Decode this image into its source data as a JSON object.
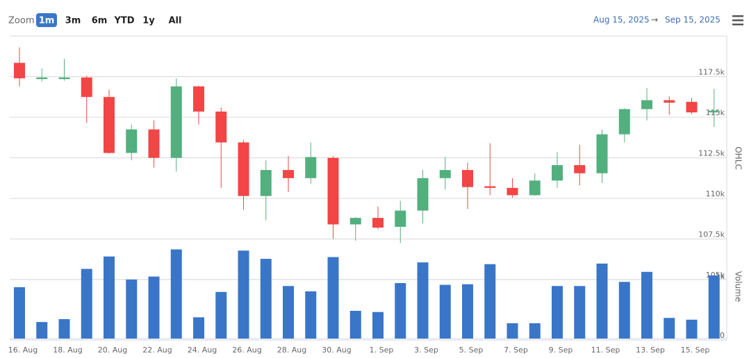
{
  "chart_data": {
    "type": "candlestick",
    "zoom_label": "Zoom",
    "zoom_buttons": [
      "1m",
      "3m",
      "6m",
      "YTD",
      "1y",
      "All"
    ],
    "selected_zoom": 0,
    "range_from": "Aug 15, 2025",
    "range_arrow": "→",
    "range_to": "Sep 15, 2025",
    "categories": [
      "16. Aug",
      null,
      "18. Aug",
      null,
      "20. Aug",
      null,
      "22. Aug",
      null,
      "24. Aug",
      null,
      "26. Aug",
      null,
      "28. Aug",
      null,
      "30. Aug",
      null,
      "1. Sep",
      null,
      "3. Sep",
      null,
      "5. Sep",
      null,
      "7. Sep",
      null,
      "9. Sep",
      null,
      "11. Sep",
      null,
      "13. Sep",
      null,
      "15. Sep",
      null
    ],
    "open": [
      118350,
      117350,
      117350,
      117450,
      116250,
      112800,
      114250,
      112500,
      116900,
      115350,
      113450,
      110150,
      111750,
      111250,
      112500,
      108400,
      108800,
      108250,
      109250,
      111250,
      111750,
      110750,
      110650,
      110200,
      111100,
      112050,
      111550,
      113950,
      115500,
      116050,
      115950,
      115300
    ],
    "high": [
      119300,
      118000,
      118600,
      117550,
      116700,
      114550,
      114800,
      117400,
      116950,
      115600,
      113600,
      112350,
      112600,
      113450,
      112600,
      108850,
      109500,
      109850,
      111750,
      112550,
      112200,
      113400,
      111250,
      111550,
      112850,
      113300,
      114250,
      115550,
      116800,
      116300,
      116200,
      116750
    ],
    "low": [
      116900,
      117200,
      117250,
      114650,
      112750,
      112350,
      111900,
      111650,
      114550,
      110650,
      109300,
      108650,
      110400,
      110900,
      107500,
      107400,
      108100,
      107250,
      108450,
      110550,
      109350,
      110200,
      110050,
      110150,
      110650,
      110800,
      110950,
      113450,
      114800,
      115150,
      115200,
      114400
    ],
    "close": [
      117400,
      117450,
      117450,
      116250,
      112800,
      114250,
      112500,
      116900,
      115350,
      113450,
      110150,
      111750,
      111250,
      112550,
      108400,
      108800,
      108200,
      109250,
      111250,
      111750,
      110700,
      110650,
      110200,
      111100,
      112050,
      111550,
      113950,
      115500,
      116050,
      115900,
      115300,
      115400
    ],
    "volume": [
      870,
      280,
      330,
      1180,
      1390,
      1000,
      1050,
      1510,
      360,
      790,
      1490,
      1350,
      890,
      800,
      1380,
      470,
      450,
      940,
      1290,
      910,
      920,
      1260,
      260,
      260,
      890,
      890,
      1270,
      960,
      1130,
      350,
      320,
      1070
    ],
    "up_color": "#52b07e",
    "down_color": "#f24545",
    "volume_color": "#3a76c8",
    "ylim": [
      105000,
      120000
    ],
    "yticks": [
      {
        "value": 105000,
        "label": "105k"
      },
      {
        "value": 107500,
        "label": "107.5k"
      },
      {
        "value": 110000,
        "label": "110k"
      },
      {
        "value": 112500,
        "label": "112.5k"
      },
      {
        "value": 115000,
        "label": "115k"
      },
      {
        "value": 117500,
        "label": "117.5k"
      }
    ],
    "y2lim": [
      0,
      1680
    ],
    "y2ticks": [
      0,
      {
        "value": 1000,
        "label": "1k"
      }
    ],
    "yaxis_title": "OHLC",
    "y2axis_title": "Volume",
    "grid": true
  }
}
